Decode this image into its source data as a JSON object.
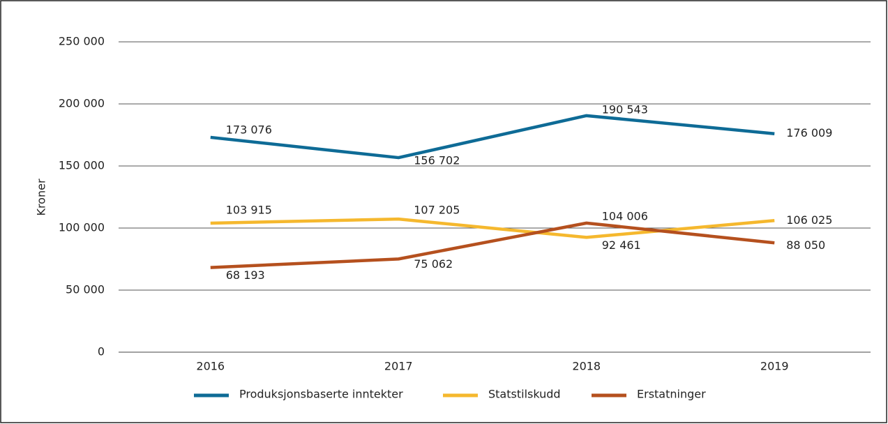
{
  "chart_data": {
    "type": "line",
    "y_label": "Kroner",
    "categories": [
      "2016",
      "2017",
      "2018",
      "2019"
    ],
    "series": [
      {
        "name": "Produksjonsbaserte inntekter",
        "color": "#0e6b96",
        "values": [
          173076,
          156702,
          190543,
          176009
        ],
        "value_labels": [
          "173 076",
          "156 702",
          "190 543",
          "176 009"
        ]
      },
      {
        "name": "Statstilskudd",
        "color": "#f5b82e",
        "values": [
          103915,
          107205,
          92461,
          106025
        ],
        "value_labels": [
          "103 915",
          "107 205",
          "92 461",
          "106 025"
        ]
      },
      {
        "name": "Erstatninger",
        "color": "#b5501e",
        "values": [
          68193,
          75062,
          104006,
          88050
        ],
        "value_labels": [
          "68 193",
          "75 062",
          "104 006",
          "88 050"
        ]
      }
    ],
    "ylim": [
      0,
      250000
    ],
    "yticks": [
      0,
      {
        "value": 50000,
        "label": "50 000"
      },
      {
        "value": 100000,
        "label": "100 000"
      },
      {
        "value": 150000,
        "label": "150 000"
      },
      {
        "value": 200000,
        "label": "200 000"
      },
      {
        "value": 250000,
        "label": "250 000"
      }
    ],
    "grid": true,
    "legend": "bottom"
  }
}
